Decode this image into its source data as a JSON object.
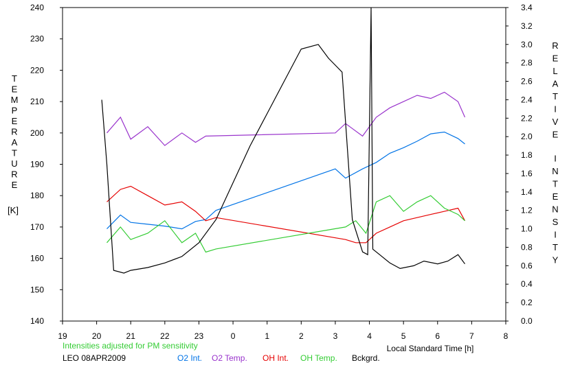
{
  "chart_data": {
    "type": "line",
    "left_axis": {
      "label": "TEMPERATURE",
      "unit": "[K]",
      "range": [
        140,
        240
      ],
      "ticks": [
        "140",
        "150",
        "160",
        "170",
        "180",
        "190",
        "200",
        "210",
        "220",
        "230",
        "240"
      ]
    },
    "right_axis": {
      "label": "RELATIVE INTENSITY",
      "range": [
        0.0,
        3.4
      ],
      "ticks": [
        "0.0",
        "0.2",
        "0.4",
        "0.6",
        "0.8",
        "1.0",
        "1.2",
        "1.4",
        "1.6",
        "1.8",
        "2.0",
        "2.2",
        "2.4",
        "2.6",
        "2.8",
        "3.0",
        "3.2",
        "3.4"
      ]
    },
    "x_axis": {
      "label": "Local Standard Time [h]",
      "range": [
        19,
        32
      ],
      "ticks": [
        "19",
        "20",
        "21",
        "22",
        "23",
        "0",
        "1",
        "2",
        "3",
        "4",
        "5",
        "6",
        "7",
        "8"
      ]
    },
    "note": "Intensities adjusted for PM sensitivity",
    "station": "LEO 08APR2009",
    "grid": false,
    "series": [
      {
        "name": "O2 Int.",
        "color": "#0073e6",
        "axis": "right",
        "x": [
          20.3,
          20.7,
          21.0,
          21.5,
          22.0,
          22.5,
          22.9,
          23.2,
          23.5,
          27.0,
          27.3,
          27.8,
          28.2,
          28.6,
          29.0,
          29.4,
          29.8,
          30.2,
          30.6,
          30.8
        ],
        "y": [
          1.0,
          1.15,
          1.07,
          1.05,
          1.03,
          1.0,
          1.08,
          1.1,
          1.2,
          1.65,
          1.55,
          1.65,
          1.72,
          1.82,
          1.88,
          1.95,
          2.03,
          2.05,
          1.98,
          1.92
        ]
      },
      {
        "name": "O2 Temp.",
        "color": "#9933cc",
        "axis": "left",
        "x": [
          20.3,
          20.7,
          21.0,
          21.5,
          22.0,
          22.5,
          22.9,
          23.2,
          27.0,
          27.3,
          27.8,
          28.2,
          28.6,
          29.0,
          29.4,
          29.8,
          30.2,
          30.6,
          30.8
        ],
        "y": [
          200,
          205,
          198,
          202,
          196,
          200,
          197,
          199,
          200,
          203,
          199,
          205,
          208,
          210,
          212,
          211,
          213,
          210,
          205
        ]
      },
      {
        "name": "OH Int.",
        "color": "#e60000",
        "axis": "left",
        "x": [
          20.3,
          20.7,
          21.0,
          21.5,
          22.0,
          22.5,
          22.9,
          23.2,
          23.5,
          27.3,
          27.6,
          27.9,
          28.2,
          28.6,
          29.0,
          29.4,
          29.8,
          30.2,
          30.6,
          30.8
        ],
        "y": [
          178,
          182,
          183,
          180,
          177,
          178,
          175,
          172,
          173,
          166,
          165,
          165,
          168,
          170,
          172,
          173,
          174,
          175,
          176,
          172
        ]
      },
      {
        "name": "OH Temp.",
        "color": "#33cc33",
        "axis": "left",
        "x": [
          20.3,
          20.7,
          21.0,
          21.5,
          22.0,
          22.5,
          22.9,
          23.2,
          23.5,
          27.3,
          27.6,
          27.9,
          28.2,
          28.6,
          29.0,
          29.4,
          29.8,
          30.2,
          30.6,
          30.8
        ],
        "y": [
          165,
          170,
          166,
          168,
          172,
          165,
          168,
          162,
          163,
          170,
          172,
          168,
          178,
          180,
          175,
          178,
          180,
          176,
          174,
          172
        ]
      },
      {
        "name": "Bckgrd.",
        "color": "#000000",
        "axis": "right",
        "x": [
          20.15,
          20.3,
          20.5,
          20.8,
          21.0,
          21.5,
          22.0,
          22.5,
          23.0,
          23.5,
          24.0,
          24.5,
          25.0,
          25.5,
          26.0,
          26.5,
          26.8,
          27.2,
          27.5,
          27.8,
          27.95,
          28.05,
          28.1,
          28.3,
          28.6,
          28.9,
          29.3,
          29.6,
          30.0,
          30.3,
          30.6,
          30.8
        ],
        "y": [
          2.4,
          1.7,
          0.55,
          0.52,
          0.55,
          0.58,
          0.63,
          0.7,
          0.85,
          1.1,
          1.5,
          1.9,
          2.25,
          2.6,
          2.95,
          3.0,
          2.85,
          2.7,
          1.1,
          0.75,
          0.72,
          3.4,
          0.78,
          0.72,
          0.63,
          0.57,
          0.6,
          0.65,
          0.62,
          0.65,
          0.72,
          0.62
        ]
      }
    ]
  }
}
